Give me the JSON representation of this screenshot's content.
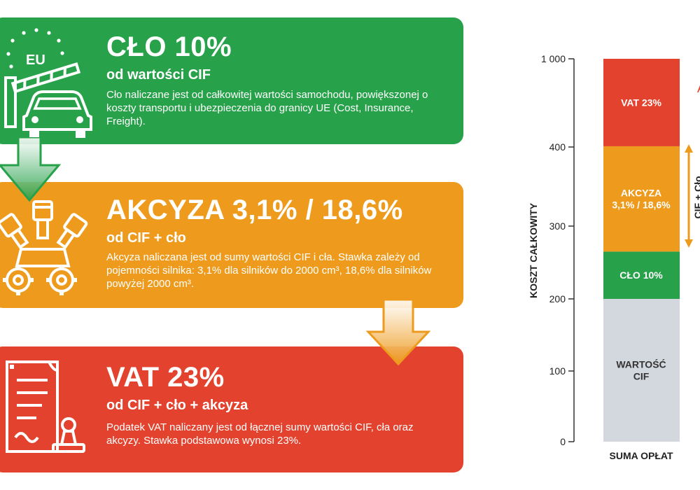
{
  "cards": {
    "clo": {
      "title": "CŁO 10%",
      "subtitle": "od wartości CIF",
      "description": "Cło naliczane jest od całkowitej wartości samochodu, powiększonej o koszty transportu i ubezpieczenia do granicy UE (Cost, Insurance, Freight).",
      "badge": "EU",
      "color": "#27a14a",
      "icon": "eu-border-car-icon"
    },
    "akcyza": {
      "title": "AKCYZA 3,1% / 18,6%",
      "subtitle": "od CIF + cło",
      "description": "Akcyza naliczana jest od sumy wartości CIF i cła. Stawka zależy od pojemności silnika: 3,1% dla silników do 2000 cm³, 18,6% dla silników powyżej 2000 cm³.",
      "color": "#ee9b1d",
      "icon": "engine-gears-icon"
    },
    "vat": {
      "title": "VAT 23%",
      "subtitle": "od CIF + cło + akcyza",
      "description": "Podatek VAT naliczany jest od łącznej sumy wartości CIF, cła oraz akcyzy. Stawka podstawowa wynosi 23%.",
      "color": "#e3432e",
      "icon": "document-stamp-icon"
    }
  },
  "chart_data": {
    "type": "bar",
    "stacked": true,
    "categories": [
      "SUMA OPŁAT"
    ],
    "ylabel": "KOSZT CAŁKOWITY",
    "yticks": [
      "0",
      "100",
      "200",
      "300",
      "400",
      "1 000"
    ],
    "series": [
      {
        "name": "WARTOŚĆ CIF",
        "value_range": [
          0,
          200
        ],
        "color": "#d3d8de"
      },
      {
        "name": "CŁO 10%",
        "value_range": [
          200,
          265
        ],
        "color": "#27a14a"
      },
      {
        "name": "AKCYZA 3,1% / 18,6%",
        "value_range": [
          265,
          405
        ],
        "color": "#ee9b1d"
      },
      {
        "name": "VAT 23%",
        "value_range": [
          405,
          1000
        ],
        "color": "#e3432e"
      }
    ],
    "segment_labels": {
      "cif": [
        "WARTOŚĆ",
        "CIF"
      ],
      "clo": [
        "CŁO 10%"
      ],
      "akcyza": [
        "AKCYZA",
        "3,1% / 18,6%"
      ],
      "vat": [
        "VAT 23%"
      ]
    },
    "bracket_label": "CIF + Cło",
    "edge_letter": "A"
  }
}
